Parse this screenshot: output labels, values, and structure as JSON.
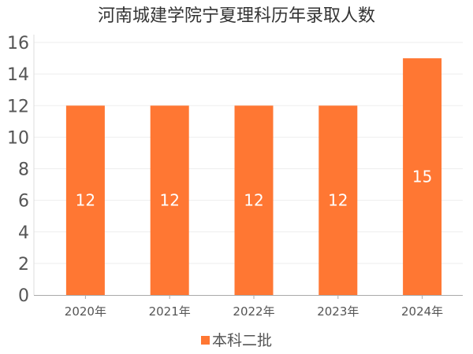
{
  "chart_data": {
    "type": "bar",
    "title": "河南城建学院宁夏理科历年录取人数",
    "categories": [
      "2020年",
      "2021年",
      "2022年",
      "2023年",
      "2024年"
    ],
    "series": [
      {
        "name": "本科二批",
        "values": [
          12,
          12,
          12,
          12,
          15
        ],
        "color": "#FF7733"
      }
    ],
    "yticks": [
      "0",
      "2",
      "4",
      "6",
      "8",
      "10",
      "12",
      "14",
      "16"
    ],
    "ylim": [
      0,
      16.5
    ],
    "grid": true,
    "legend_position": "bottom",
    "data_labels": [
      "12",
      "12",
      "12",
      "12",
      "15"
    ]
  }
}
